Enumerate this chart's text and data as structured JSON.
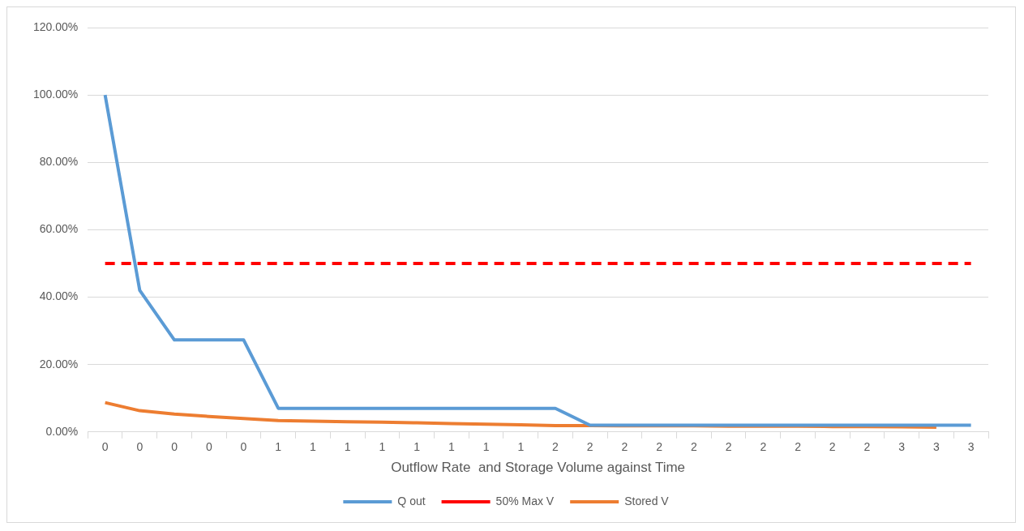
{
  "chart_data": {
    "type": "line",
    "xlabel": "Outflow Rate  and Storage Volume against Time",
    "categories": [
      "0",
      "0",
      "0",
      "0",
      "0",
      "1",
      "1",
      "1",
      "1",
      "1",
      "1",
      "1",
      "1",
      "2",
      "2",
      "2",
      "2",
      "2",
      "2",
      "2",
      "2",
      "2",
      "2",
      "3",
      "3",
      "3"
    ],
    "series": [
      {
        "name": "Q out",
        "color": "#5b9bd5",
        "line_style": "solid",
        "values": [
          100,
          42,
          27.3,
          27.3,
          27.3,
          7,
          7,
          7,
          7,
          7,
          7,
          7,
          7,
          7,
          2,
          2,
          2,
          2,
          2,
          2,
          2,
          2,
          2,
          2,
          2,
          2
        ]
      },
      {
        "name": "50% Max V",
        "color": "#ff0000",
        "line_style": "dashed",
        "values": [
          50,
          50,
          50,
          50,
          50,
          50,
          50,
          50,
          50,
          50,
          50,
          50,
          50,
          50,
          50,
          50,
          50,
          50,
          50,
          50,
          50,
          50,
          50,
          50,
          50,
          50
        ]
      },
      {
        "name": "Stored V",
        "color": "#ed7d31",
        "line_style": "solid",
        "values": [
          8.7,
          6.3,
          5.3,
          4.6,
          4,
          3.4,
          3.2,
          3,
          2.9,
          2.7,
          2.5,
          2.3,
          2.1,
          1.9,
          1.9,
          1.8,
          1.8,
          1.8,
          1.7,
          1.7,
          1.7,
          1.6,
          1.6,
          1.5,
          1.4,
          null
        ]
      }
    ],
    "ylim": [
      0,
      120
    ],
    "yticks": [
      {
        "value": 0,
        "label": "0.00%"
      },
      {
        "value": 20,
        "label": "20.00%"
      },
      {
        "value": 40,
        "label": "40.00%"
      },
      {
        "value": 60,
        "label": "60.00%"
      },
      {
        "value": 80,
        "label": "80.00%"
      },
      {
        "value": 100,
        "label": "100.00%"
      },
      {
        "value": 120,
        "label": "120.00%"
      }
    ],
    "grid": "y",
    "legend": "bottom",
    "marker": "none"
  }
}
